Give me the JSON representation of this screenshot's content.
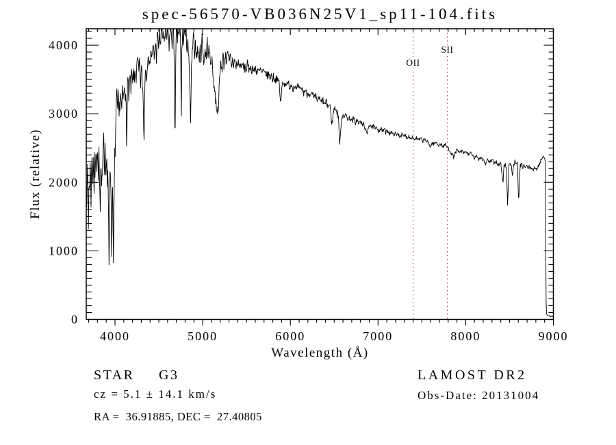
{
  "page": {
    "background": "#ffffff",
    "foreground": "#000000"
  },
  "chart_data": {
    "type": "line",
    "title": "spec-56570-VB036N25V1_sp11-104.fits",
    "xlabel": "Wavelength (Å)",
    "ylabel": "Flux (relative)",
    "xlim": [
      3672,
      9000
    ],
    "ylim": [
      0,
      4240
    ],
    "x_ticks": [
      4000,
      5000,
      6000,
      7000,
      8000,
      9000
    ],
    "y_ticks": [
      0,
      1000,
      2000,
      3000,
      4000
    ],
    "x_minor_step": 100,
    "y_minor_step": 100,
    "grid": false,
    "legend": "none",
    "line_color": "#000000",
    "annotation_color": "#993333",
    "annotations": [
      {
        "label": "OII",
        "wavelength": 7400,
        "label_flux": 3700
      },
      {
        "label": "SII",
        "wavelength": 7790,
        "label_flux": 3890
      }
    ],
    "noise_seed": 7,
    "noise_amplitude_profile": [
      [
        3672,
        210
      ],
      [
        3950,
        200
      ],
      [
        4050,
        150
      ],
      [
        4600,
        130
      ],
      [
        5000,
        110
      ],
      [
        5300,
        85
      ],
      [
        5600,
        65
      ],
      [
        6000,
        55
      ],
      [
        6400,
        50
      ],
      [
        6700,
        42
      ],
      [
        7000,
        34
      ],
      [
        7400,
        28
      ],
      [
        7800,
        26
      ],
      [
        8200,
        28
      ],
      [
        8600,
        32
      ],
      [
        8895,
        22
      ],
      [
        8916,
        8
      ],
      [
        9000,
        6
      ]
    ],
    "spectrum": [
      [
        3672,
        2050
      ],
      [
        3680,
        1700
      ],
      [
        3688,
        2250
      ],
      [
        3696,
        1250
      ],
      [
        3704,
        2150
      ],
      [
        3712,
        1900
      ],
      [
        3720,
        2350
      ],
      [
        3728,
        1700
      ],
      [
        3736,
        2400
      ],
      [
        3744,
        2000
      ],
      [
        3752,
        2450
      ],
      [
        3760,
        1800
      ],
      [
        3768,
        2300
      ],
      [
        3776,
        2050
      ],
      [
        3784,
        2700
      ],
      [
        3792,
        2300
      ],
      [
        3800,
        2550
      ],
      [
        3808,
        2000
      ],
      [
        3816,
        2400
      ],
      [
        3824,
        1950
      ],
      [
        3832,
        1500
      ],
      [
        3840,
        2300
      ],
      [
        3848,
        1700
      ],
      [
        3856,
        2250
      ],
      [
        3864,
        2600
      ],
      [
        3872,
        2750
      ],
      [
        3880,
        2200
      ],
      [
        3888,
        2500
      ],
      [
        3896,
        2100
      ],
      [
        3904,
        2350
      ],
      [
        3912,
        1850
      ],
      [
        3920,
        2250
      ],
      [
        3926,
        1600
      ],
      [
        3933,
        830
      ],
      [
        3940,
        1900
      ],
      [
        3948,
        2250
      ],
      [
        3955,
        1900
      ],
      [
        3963,
        850
      ],
      [
        3970,
        2000
      ],
      [
        3977,
        1500
      ],
      [
        3983,
        670
      ],
      [
        3990,
        1800
      ],
      [
        3997,
        2350
      ],
      [
        4005,
        2600
      ],
      [
        4013,
        3050
      ],
      [
        4021,
        3250
      ],
      [
        4029,
        2950
      ],
      [
        4037,
        3200
      ],
      [
        4045,
        2900
      ],
      [
        4055,
        3150
      ],
      [
        4065,
        3350
      ],
      [
        4075,
        3000
      ],
      [
        4085,
        3300
      ],
      [
        4095,
        3150
      ],
      [
        4105,
        3400
      ],
      [
        4115,
        3100
      ],
      [
        4125,
        3450
      ],
      [
        4133,
        2560
      ],
      [
        4141,
        3300
      ],
      [
        4150,
        3500
      ],
      [
        4160,
        3250
      ],
      [
        4170,
        3550
      ],
      [
        4180,
        3300
      ],
      [
        4190,
        3600
      ],
      [
        4200,
        3350
      ],
      [
        4210,
        3650
      ],
      [
        4220,
        3400
      ],
      [
        4230,
        3700
      ],
      [
        4240,
        3500
      ],
      [
        4250,
        3650
      ],
      [
        4260,
        3800
      ],
      [
        4270,
        3550
      ],
      [
        4280,
        3750
      ],
      [
        4290,
        3400
      ],
      [
        4300,
        3650
      ],
      [
        4310,
        3500
      ],
      [
        4320,
        3300
      ],
      [
        4330,
        2530
      ],
      [
        4340,
        3400
      ],
      [
        4350,
        3750
      ],
      [
        4360,
        3550
      ],
      [
        4370,
        3850
      ],
      [
        4380,
        3650
      ],
      [
        4390,
        3900
      ],
      [
        4400,
        3700
      ],
      [
        4412,
        3950
      ],
      [
        4424,
        3750
      ],
      [
        4436,
        4000
      ],
      [
        4448,
        3800
      ],
      [
        4460,
        4050
      ],
      [
        4472,
        3850
      ],
      [
        4484,
        4150
      ],
      [
        4496,
        3950
      ],
      [
        4508,
        4200
      ],
      [
        4520,
        4000
      ],
      [
        4532,
        4240
      ],
      [
        4544,
        4080
      ],
      [
        4556,
        4220
      ],
      [
        4568,
        4000
      ],
      [
        4580,
        4240
      ],
      [
        4592,
        4100
      ],
      [
        4604,
        4240
      ],
      [
        4616,
        3980
      ],
      [
        4628,
        4200
      ],
      [
        4640,
        4240
      ],
      [
        4652,
        4050
      ],
      [
        4664,
        4220
      ],
      [
        4676,
        3900
      ],
      [
        4685,
        2400
      ],
      [
        4694,
        3950
      ],
      [
        4703,
        4240
      ],
      [
        4712,
        4100
      ],
      [
        4721,
        4240
      ],
      [
        4730,
        4150
      ],
      [
        4740,
        4240
      ],
      [
        4750,
        4000
      ],
      [
        4755,
        2550
      ],
      [
        4762,
        3900
      ],
      [
        4771,
        4200
      ],
      [
        4780,
        4050
      ],
      [
        4790,
        4240
      ],
      [
        4800,
        4100
      ],
      [
        4810,
        4200
      ],
      [
        4820,
        3950
      ],
      [
        4830,
        4150
      ],
      [
        4840,
        3800
      ],
      [
        4850,
        3500
      ],
      [
        4861,
        2850
      ],
      [
        4872,
        3600
      ],
      [
        4884,
        3950
      ],
      [
        4896,
        4100
      ],
      [
        4908,
        3900
      ],
      [
        4920,
        4050
      ],
      [
        4932,
        3800
      ],
      [
        4944,
        4000
      ],
      [
        4956,
        3750
      ],
      [
        4968,
        3950
      ],
      [
        4980,
        3800
      ],
      [
        4992,
        4100
      ],
      [
        5004,
        3900
      ],
      [
        5016,
        3750
      ],
      [
        5028,
        3950
      ],
      [
        5040,
        3800
      ],
      [
        5052,
        4050
      ],
      [
        5064,
        3850
      ],
      [
        5076,
        3950
      ],
      [
        5088,
        3700
      ],
      [
        5100,
        3850
      ],
      [
        5112,
        3650
      ],
      [
        5124,
        3500
      ],
      [
        5136,
        3350
      ],
      [
        5148,
        3200
      ],
      [
        5160,
        3100
      ],
      [
        5172,
        3030
      ],
      [
        5184,
        3250
      ],
      [
        5196,
        3550
      ],
      [
        5208,
        3750
      ],
      [
        5220,
        3650
      ],
      [
        5232,
        3850
      ],
      [
        5244,
        3700
      ],
      [
        5256,
        3900
      ],
      [
        5268,
        3750
      ],
      [
        5280,
        3950
      ],
      [
        5292,
        3800
      ],
      [
        5304,
        3710
      ],
      [
        5316,
        3860
      ],
      [
        5328,
        3660
      ],
      [
        5340,
        3810
      ],
      [
        5352,
        3710
      ],
      [
        5364,
        3790
      ],
      [
        5376,
        3660
      ],
      [
        5388,
        3730
      ],
      [
        5400,
        3700
      ],
      [
        5412,
        3770
      ],
      [
        5424,
        3650
      ],
      [
        5436,
        3740
      ],
      [
        5448,
        3660
      ],
      [
        5460,
        3730
      ],
      [
        5472,
        3640
      ],
      [
        5484,
        3700
      ],
      [
        5496,
        3620
      ],
      [
        5510,
        3730
      ],
      [
        5525,
        3640
      ],
      [
        5540,
        3710
      ],
      [
        5555,
        3620
      ],
      [
        5570,
        3690
      ],
      [
        5585,
        3600
      ],
      [
        5600,
        3680
      ],
      [
        5615,
        3610
      ],
      [
        5630,
        3660
      ],
      [
        5645,
        3590
      ],
      [
        5660,
        3650
      ],
      [
        5675,
        3580
      ],
      [
        5690,
        3630
      ],
      [
        5705,
        3560
      ],
      [
        5720,
        3610
      ],
      [
        5735,
        3540
      ],
      [
        5750,
        3590
      ],
      [
        5765,
        3520
      ],
      [
        5780,
        3570
      ],
      [
        5795,
        3500
      ],
      [
        5810,
        3550
      ],
      [
        5825,
        3480
      ],
      [
        5840,
        3530
      ],
      [
        5855,
        3460
      ],
      [
        5870,
        3500
      ],
      [
        5890,
        3110
      ],
      [
        5905,
        3420
      ],
      [
        5920,
        3490
      ],
      [
        5935,
        3410
      ],
      [
        5950,
        3470
      ],
      [
        5965,
        3400
      ],
      [
        5980,
        3450
      ],
      [
        5995,
        3380
      ],
      [
        6010,
        3440
      ],
      [
        6030,
        3370
      ],
      [
        6050,
        3420
      ],
      [
        6070,
        3350
      ],
      [
        6090,
        3400
      ],
      [
        6110,
        3330
      ],
      [
        6130,
        3380
      ],
      [
        6150,
        3300
      ],
      [
        6170,
        3350
      ],
      [
        6190,
        3280
      ],
      [
        6210,
        3320
      ],
      [
        6230,
        3250
      ],
      [
        6250,
        3290
      ],
      [
        6270,
        3220
      ],
      [
        6290,
        3260
      ],
      [
        6310,
        3190
      ],
      [
        6330,
        3230
      ],
      [
        6350,
        3160
      ],
      [
        6370,
        3200
      ],
      [
        6390,
        3130
      ],
      [
        6410,
        3170
      ],
      [
        6430,
        3100
      ],
      [
        6450,
        3140
      ],
      [
        6475,
        2840
      ],
      [
        6495,
        3060
      ],
      [
        6515,
        3090
      ],
      [
        6535,
        3010
      ],
      [
        6550,
        2950
      ],
      [
        6563,
        2490
      ],
      [
        6580,
        2900
      ],
      [
        6600,
        3000
      ],
      [
        6620,
        2950
      ],
      [
        6640,
        2980
      ],
      [
        6660,
        2910
      ],
      [
        6680,
        2950
      ],
      [
        6700,
        2890
      ],
      [
        6720,
        2930
      ],
      [
        6740,
        2870
      ],
      [
        6760,
        2910
      ],
      [
        6780,
        2850
      ],
      [
        6800,
        2890
      ],
      [
        6820,
        2830
      ],
      [
        6840,
        2860
      ],
      [
        6860,
        2740
      ],
      [
        6875,
        2690
      ],
      [
        6890,
        2820
      ],
      [
        6910,
        2850
      ],
      [
        6930,
        2790
      ],
      [
        6950,
        2820
      ],
      [
        6970,
        2770
      ],
      [
        6990,
        2800
      ],
      [
        7010,
        2750
      ],
      [
        7030,
        2790
      ],
      [
        7050,
        2740
      ],
      [
        7070,
        2780
      ],
      [
        7090,
        2720
      ],
      [
        7110,
        2760
      ],
      [
        7130,
        2710
      ],
      [
        7150,
        2740
      ],
      [
        7170,
        2690
      ],
      [
        7190,
        2720
      ],
      [
        7210,
        2680
      ],
      [
        7230,
        2710
      ],
      [
        7250,
        2670
      ],
      [
        7270,
        2700
      ],
      [
        7290,
        2660
      ],
      [
        7310,
        2690
      ],
      [
        7330,
        2650
      ],
      [
        7350,
        2680
      ],
      [
        7370,
        2640
      ],
      [
        7390,
        2670
      ],
      [
        7410,
        2620
      ],
      [
        7435,
        2650
      ],
      [
        7460,
        2610
      ],
      [
        7485,
        2640
      ],
      [
        7510,
        2600
      ],
      [
        7535,
        2630
      ],
      [
        7560,
        2590
      ],
      [
        7585,
        2550
      ],
      [
        7600,
        2520
      ],
      [
        7615,
        2570
      ],
      [
        7640,
        2560
      ],
      [
        7665,
        2580
      ],
      [
        7690,
        2540
      ],
      [
        7715,
        2560
      ],
      [
        7740,
        2520
      ],
      [
        7765,
        2550
      ],
      [
        7790,
        2510
      ],
      [
        7815,
        2470
      ],
      [
        7840,
        2420
      ],
      [
        7865,
        2360
      ],
      [
        7880,
        2430
      ],
      [
        7900,
        2470
      ],
      [
        7925,
        2430
      ],
      [
        7950,
        2460
      ],
      [
        7975,
        2420
      ],
      [
        8000,
        2450
      ],
      [
        8025,
        2410
      ],
      [
        8050,
        2430
      ],
      [
        8075,
        2390
      ],
      [
        8100,
        2350
      ],
      [
        8125,
        2380
      ],
      [
        8150,
        2340
      ],
      [
        8175,
        2370
      ],
      [
        8200,
        2330
      ],
      [
        8225,
        2270
      ],
      [
        8250,
        2330
      ],
      [
        8275,
        2290
      ],
      [
        8300,
        2320
      ],
      [
        8325,
        2280
      ],
      [
        8350,
        2300
      ],
      [
        8375,
        2250
      ],
      [
        8400,
        2280
      ],
      [
        8415,
        2100
      ],
      [
        8425,
        1960
      ],
      [
        8435,
        2240
      ],
      [
        8450,
        2260
      ],
      [
        8465,
        2200
      ],
      [
        8478,
        1640
      ],
      [
        8492,
        2250
      ],
      [
        8506,
        2280
      ],
      [
        8520,
        2230
      ],
      [
        8534,
        2100
      ],
      [
        8548,
        2260
      ],
      [
        8562,
        2300
      ],
      [
        8576,
        2250
      ],
      [
        8590,
        2280
      ],
      [
        8605,
        1690
      ],
      [
        8620,
        2230
      ],
      [
        8635,
        2260
      ],
      [
        8650,
        2220
      ],
      [
        8665,
        2250
      ],
      [
        8680,
        2210
      ],
      [
        8695,
        2240
      ],
      [
        8710,
        2200
      ],
      [
        8725,
        2230
      ],
      [
        8740,
        2190
      ],
      [
        8755,
        2220
      ],
      [
        8770,
        2180
      ],
      [
        8785,
        2210
      ],
      [
        8800,
        2180
      ],
      [
        8815,
        2210
      ],
      [
        8830,
        2240
      ],
      [
        8845,
        2280
      ],
      [
        8860,
        2330
      ],
      [
        8875,
        2360
      ],
      [
        8890,
        2400
      ],
      [
        8900,
        2350
      ],
      [
        8908,
        2280
      ],
      [
        8912,
        1500
      ],
      [
        8916,
        300
      ],
      [
        8922,
        80
      ],
      [
        8935,
        50
      ],
      [
        8950,
        60
      ],
      [
        8965,
        40
      ],
      [
        8980,
        50
      ],
      [
        9000,
        35
      ]
    ]
  },
  "footer": {
    "class_label": "STAR",
    "subclass_label": "G3",
    "cz_line": "cz = 5.1 ± 14.1 km/s",
    "radec_line": "RA =  36.91885, DEC =  27.40805",
    "survey": "LAMOST DR2",
    "obs_date_line": "Obs-Date: 20131004"
  }
}
